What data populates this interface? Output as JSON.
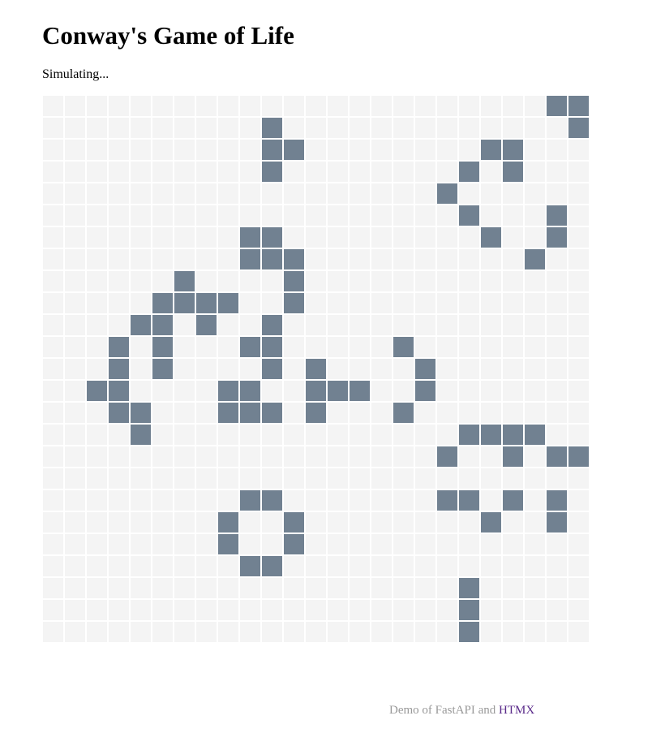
{
  "title": "Conway's Game of Life",
  "status": "Simulating...",
  "board": {
    "rows": 25,
    "cols": 25,
    "alive_color": "#718191",
    "dead_color": "#f4f4f4",
    "alive_cells": [
      [
        0,
        23
      ],
      [
        0,
        24
      ],
      [
        1,
        10
      ],
      [
        1,
        24
      ],
      [
        2,
        10
      ],
      [
        2,
        11
      ],
      [
        2,
        20
      ],
      [
        2,
        21
      ],
      [
        3,
        10
      ],
      [
        3,
        19
      ],
      [
        3,
        21
      ],
      [
        4,
        18
      ],
      [
        5,
        19
      ],
      [
        5,
        23
      ],
      [
        6,
        9
      ],
      [
        6,
        10
      ],
      [
        6,
        20
      ],
      [
        6,
        23
      ],
      [
        7,
        9
      ],
      [
        7,
        10
      ],
      [
        7,
        11
      ],
      [
        7,
        22
      ],
      [
        8,
        6
      ],
      [
        8,
        11
      ],
      [
        9,
        5
      ],
      [
        9,
        6
      ],
      [
        9,
        7
      ],
      [
        9,
        8
      ],
      [
        9,
        11
      ],
      [
        10,
        4
      ],
      [
        10,
        5
      ],
      [
        10,
        7
      ],
      [
        10,
        10
      ],
      [
        11,
        3
      ],
      [
        11,
        5
      ],
      [
        11,
        9
      ],
      [
        11,
        10
      ],
      [
        11,
        16
      ],
      [
        12,
        3
      ],
      [
        12,
        5
      ],
      [
        12,
        10
      ],
      [
        12,
        12
      ],
      [
        12,
        17
      ],
      [
        13,
        2
      ],
      [
        13,
        3
      ],
      [
        13,
        8
      ],
      [
        13,
        9
      ],
      [
        13,
        12
      ],
      [
        13,
        13
      ],
      [
        13,
        14
      ],
      [
        13,
        17
      ],
      [
        14,
        3
      ],
      [
        14,
        4
      ],
      [
        14,
        8
      ],
      [
        14,
        9
      ],
      [
        14,
        10
      ],
      [
        14,
        12
      ],
      [
        14,
        16
      ],
      [
        15,
        4
      ],
      [
        15,
        19
      ],
      [
        15,
        20
      ],
      [
        15,
        21
      ],
      [
        15,
        22
      ],
      [
        16,
        18
      ],
      [
        16,
        21
      ],
      [
        16,
        23
      ],
      [
        16,
        24
      ],
      [
        18,
        9
      ],
      [
        18,
        10
      ],
      [
        18,
        18
      ],
      [
        18,
        19
      ],
      [
        18,
        21
      ],
      [
        18,
        23
      ],
      [
        19,
        8
      ],
      [
        19,
        11
      ],
      [
        19,
        20
      ],
      [
        19,
        23
      ],
      [
        20,
        8
      ],
      [
        20,
        11
      ],
      [
        21,
        9
      ],
      [
        21,
        10
      ],
      [
        22,
        19
      ],
      [
        23,
        19
      ],
      [
        24,
        19
      ]
    ]
  },
  "footer": {
    "prefix": "Demo of FastAPI and ",
    "link": "HTMX"
  }
}
